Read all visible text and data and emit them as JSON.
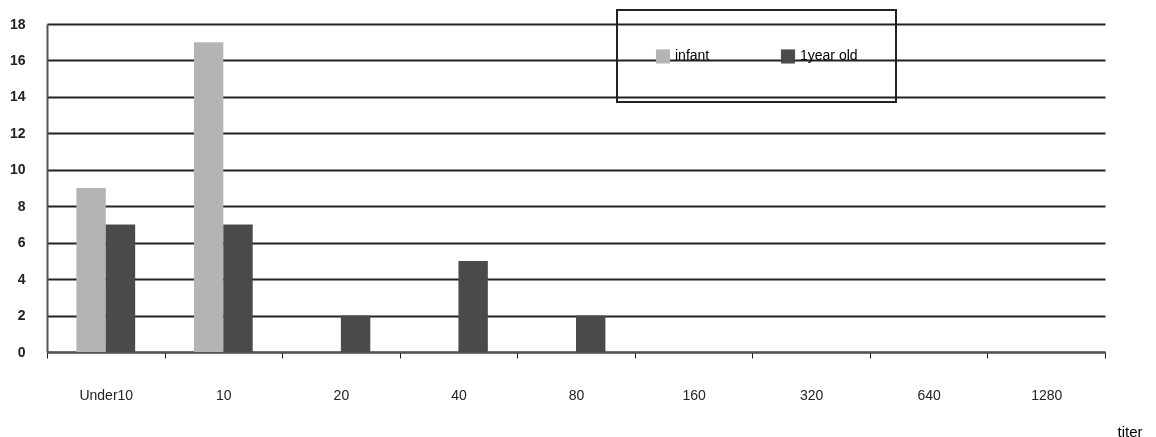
{
  "chart_data": {
    "type": "bar",
    "xlabel": "titer",
    "categories": [
      "Under10",
      "10",
      "20",
      "40",
      "80",
      "160",
      "320",
      "640",
      "1280"
    ],
    "series": [
      {
        "name": "infant",
        "color": "#b4b4b4",
        "values": [
          9,
          17,
          0,
          0,
          0,
          0,
          0,
          0,
          0
        ]
      },
      {
        "name": "1year old",
        "color": "#4a4a4a",
        "values": [
          7,
          7,
          2,
          5,
          2,
          0,
          0,
          0,
          0
        ]
      }
    ],
    "ylim": [
      0,
      18
    ],
    "yticks": [
      0,
      2,
      4,
      6,
      8,
      10,
      12,
      14,
      16,
      18
    ],
    "grid": "y",
    "legend": "top right"
  }
}
